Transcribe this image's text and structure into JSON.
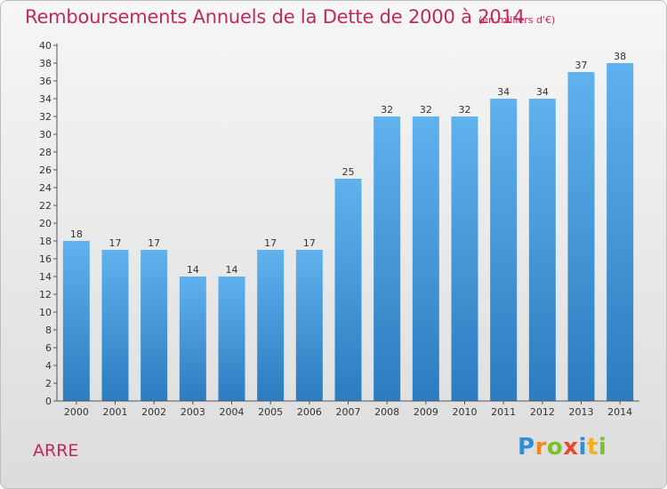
{
  "chart_data": {
    "type": "bar",
    "title": "Remboursements Annuels de la Dette de 2000 à 2014",
    "subtitle": "(en milliers d'€)",
    "categories": [
      "2000",
      "2001",
      "2002",
      "2003",
      "2004",
      "2005",
      "2006",
      "2007",
      "2008",
      "2009",
      "2010",
      "2011",
      "2012",
      "2013",
      "2014"
    ],
    "values": [
      18,
      17,
      17,
      14,
      14,
      17,
      17,
      25,
      32,
      32,
      32,
      34,
      34,
      37,
      38
    ],
    "ylim": [
      0,
      40
    ],
    "ytick_step": 2,
    "grid": false,
    "colors": {
      "bar_light": "#5aaeea",
      "bar_dark": "#2a7bbf",
      "title": "#c0295e",
      "axis": "#555555",
      "text": "#333333"
    }
  },
  "commune": "ARRE",
  "logo": {
    "letters": [
      "P",
      "r",
      "o",
      "x",
      "i",
      "t",
      "i"
    ],
    "colors": [
      "#2f8fd6",
      "#f08a1c",
      "#7bbf2a",
      "#e8472e",
      "#2f8fd6",
      "#f0b11c",
      "#7bbf2a"
    ]
  }
}
